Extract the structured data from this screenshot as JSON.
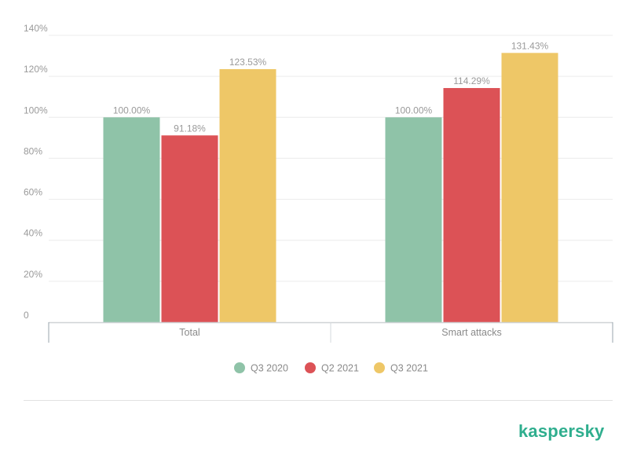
{
  "chart_data": {
    "type": "bar",
    "categories": [
      "Total",
      "Smart attacks"
    ],
    "series": [
      {
        "name": "Q3 2020",
        "color": "#8fc3a8",
        "values": [
          100.0,
          100.0
        ],
        "labels": [
          "100.00%",
          "100.00%"
        ]
      },
      {
        "name": "Q2 2021",
        "color": "#dc5256",
        "values": [
          91.18,
          114.29
        ],
        "labels": [
          "91.18%",
          "114.29%"
        ]
      },
      {
        "name": "Q3 2021",
        "color": "#eec767",
        "values": [
          123.53,
          131.43
        ],
        "labels": [
          "123.53%",
          "131.43%"
        ]
      }
    ],
    "ylim": [
      0,
      140
    ],
    "yticks": [
      0,
      20,
      40,
      60,
      80,
      100,
      120,
      140
    ],
    "ytick_labels": [
      "0",
      "20%",
      "40%",
      "60%",
      "80%",
      "100%",
      "120%",
      "140%"
    ],
    "grid": true,
    "legend": "bottom-center"
  },
  "brand": {
    "logo_text": "kaspersky"
  }
}
